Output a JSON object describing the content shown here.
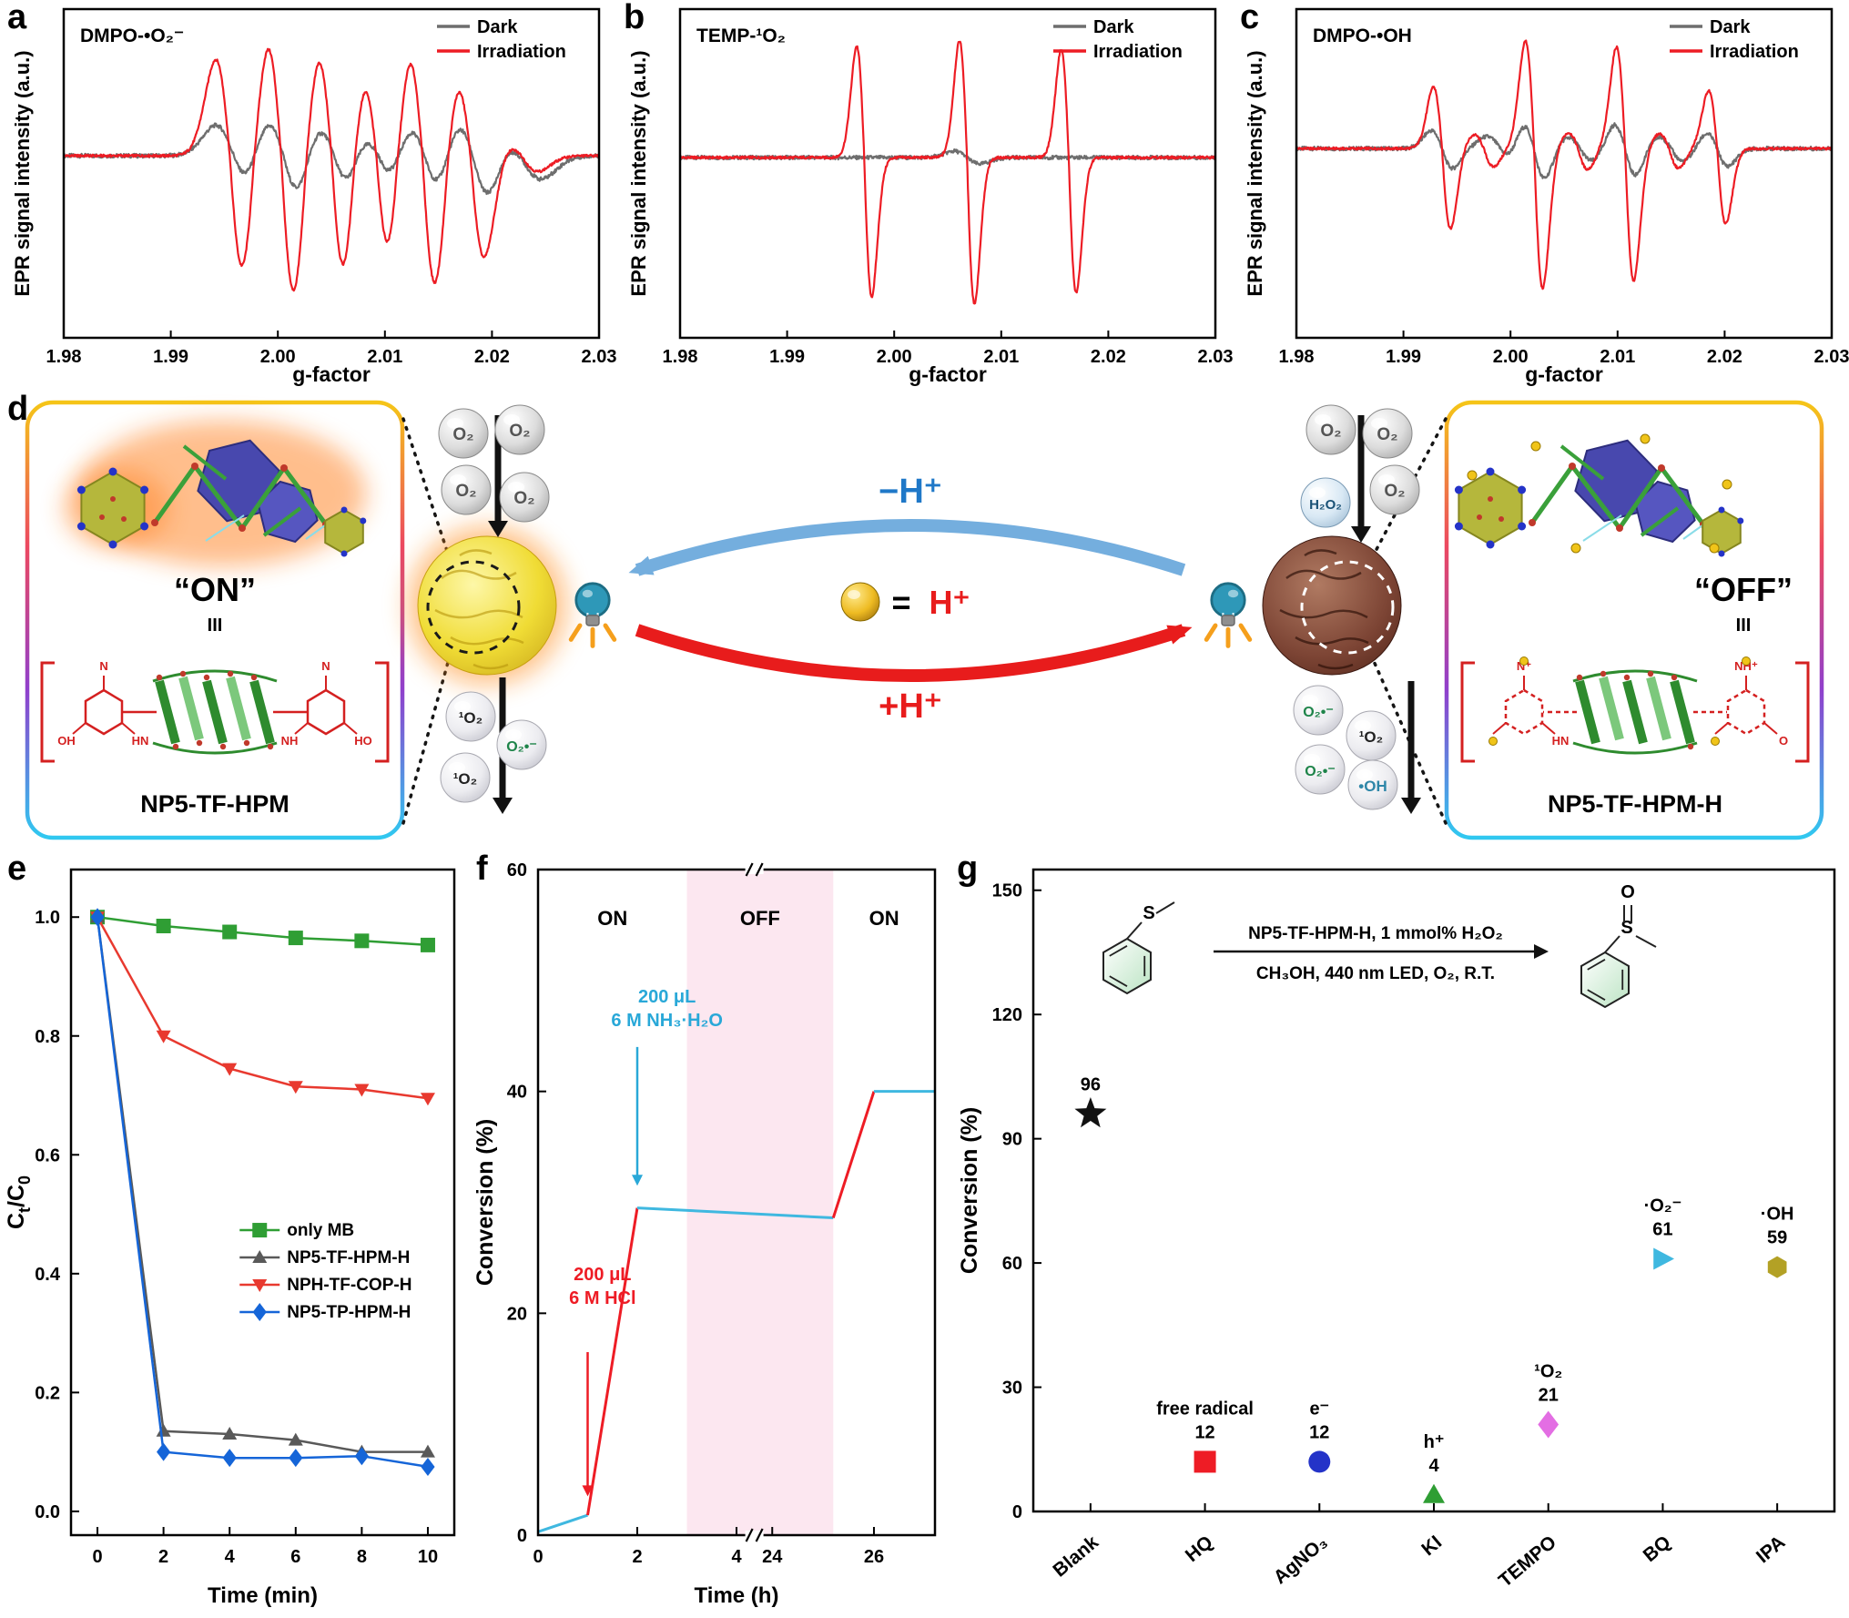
{
  "panels": {
    "a": {
      "label": "a"
    },
    "b": {
      "label": "b"
    },
    "c": {
      "label": "c"
    },
    "d": {
      "label": "d"
    },
    "e": {
      "label": "e"
    },
    "f": {
      "label": "f"
    },
    "g": {
      "label": "g"
    }
  },
  "diagram": {
    "on_title": "“ON”",
    "off_title": "“OFF”",
    "equiv": "III",
    "on_name": "NP5-TF-HPM",
    "off_name": "NP5-TF-HPM-H",
    "o2": "O₂",
    "h2o2": "H₂O₂",
    "singlet_o2": "¹O₂",
    "superoxide": "O₂•⁻",
    "hydroxyl": "•OH",
    "minus_h": "−H⁺",
    "plus_h": "+H⁺",
    "eq": "=",
    "hplus": "H⁺",
    "on_atoms": [
      "N",
      "OH",
      "HN",
      "N",
      "HO",
      "NH"
    ],
    "off_atoms": [
      "N⁺",
      "HN",
      "NH⁺",
      "O"
    ]
  },
  "chart_data": [
    {
      "id": "a",
      "type": "line",
      "tag": "DMPO-•O₂⁻",
      "xlabel": "g-factor",
      "ylabel": "EPR signal intensity (a.u.)",
      "xlim": [
        1.98,
        2.03
      ],
      "ylim": [
        -1.8,
        1.45
      ],
      "xticks": [
        1.98,
        1.99,
        2.0,
        2.01,
        2.02,
        2.03
      ],
      "legend": [
        "Dark",
        "Irradiation"
      ],
      "grid": false,
      "series": [
        {
          "name": "Dark",
          "color": "#6e6e6e",
          "noise": 0.02,
          "negScale": 1.15,
          "peaks": [
            {
              "c": 1.9958,
              "a": 0.3,
              "w": 0.0016
            },
            {
              "c": 2.0005,
              "a": 0.42,
              "w": 0.0016
            },
            {
              "c": 2.0052,
              "a": 0.38,
              "w": 0.0016
            },
            {
              "c": 2.0094,
              "a": 0.32,
              "w": 0.0016
            },
            {
              "c": 2.0137,
              "a": 0.4,
              "w": 0.0016
            },
            {
              "c": 2.0182,
              "a": 0.44,
              "w": 0.0016
            },
            {
              "c": 2.0228,
              "a": 0.2,
              "w": 0.0018
            }
          ]
        },
        {
          "name": "Irradiation",
          "color": "#ed1c24",
          "noise": 0.012,
          "negScale": 1.3,
          "peaks": [
            {
              "c": 1.9955,
              "a": 0.95,
              "w": 0.0013
            },
            {
              "c": 2.0003,
              "a": 1.15,
              "w": 0.0013
            },
            {
              "c": 2.005,
              "a": 1.05,
              "w": 0.0013
            },
            {
              "c": 2.0092,
              "a": 0.88,
              "w": 0.0013
            },
            {
              "c": 2.0135,
              "a": 1.1,
              "w": 0.0013
            },
            {
              "c": 2.018,
              "a": 0.8,
              "w": 0.0013
            },
            {
              "c": 2.0228,
              "a": 0.12,
              "w": 0.0015
            }
          ]
        }
      ]
    },
    {
      "id": "b",
      "type": "line",
      "tag": "TEMP-¹O₂",
      "xlabel": "g-factor",
      "ylabel": "EPR signal intensity (a.u.)",
      "xlim": [
        1.98,
        2.03
      ],
      "ylim": [
        -1.7,
        1.4
      ],
      "xticks": [
        1.98,
        1.99,
        2.0,
        2.01,
        2.02,
        2.03
      ],
      "legend": [
        "Dark",
        "Irradiation"
      ],
      "grid": false,
      "series": [
        {
          "name": "Dark",
          "color": "#6e6e6e",
          "noise": 0.018,
          "negScale": 1,
          "peaks": [
            {
              "c": 2.0068,
              "a": 0.06,
              "w": 0.0012
            }
          ]
        },
        {
          "name": "Irradiation",
          "color": "#ed1c24",
          "noise": 0.012,
          "negScale": 1.25,
          "peaks": [
            {
              "c": 1.9972,
              "a": 1.05,
              "w": 0.0007
            },
            {
              "c": 2.0068,
              "a": 1.1,
              "w": 0.0007
            },
            {
              "c": 2.0163,
              "a": 1.02,
              "w": 0.0007
            }
          ]
        }
      ]
    },
    {
      "id": "c",
      "type": "line",
      "tag": "DMPO-•OH",
      "xlabel": "g-factor",
      "ylabel": "EPR signal intensity (a.u.)",
      "xlim": [
        1.98,
        2.03
      ],
      "ylim": [
        -1.9,
        1.4
      ],
      "xticks": [
        1.98,
        1.99,
        2.0,
        2.01,
        2.02,
        2.03
      ],
      "legend": [
        "Dark",
        "Irradiation"
      ],
      "grid": false,
      "series": [
        {
          "name": "Dark",
          "color": "#6e6e6e",
          "noise": 0.02,
          "negScale": 1.1,
          "peaks": [
            {
              "c": 1.9936,
              "a": 0.18,
              "w": 0.001
            },
            {
              "c": 1.999,
              "a": 0.12,
              "w": 0.0012
            },
            {
              "c": 2.0022,
              "a": 0.28,
              "w": 0.001
            },
            {
              "c": 2.0065,
              "a": 0.12,
              "w": 0.0012
            },
            {
              "c": 2.0107,
              "a": 0.25,
              "w": 0.001
            },
            {
              "c": 2.015,
              "a": 0.12,
              "w": 0.0012
            },
            {
              "c": 2.0193,
              "a": 0.16,
              "w": 0.001
            }
          ]
        },
        {
          "name": "Irradiation",
          "color": "#ed1c24",
          "noise": 0.012,
          "negScale": 1.3,
          "peaks": [
            {
              "c": 1.9936,
              "a": 0.62,
              "w": 0.0008
            },
            {
              "c": 1.9975,
              "a": 0.14,
              "w": 0.0009
            },
            {
              "c": 2.0022,
              "a": 1.08,
              "w": 0.0008
            },
            {
              "c": 2.0063,
              "a": 0.16,
              "w": 0.0009
            },
            {
              "c": 2.0107,
              "a": 1.02,
              "w": 0.0008
            },
            {
              "c": 2.0148,
              "a": 0.15,
              "w": 0.0009
            },
            {
              "c": 2.0193,
              "a": 0.58,
              "w": 0.0008
            }
          ]
        }
      ]
    },
    {
      "id": "e",
      "type": "line",
      "xlabel": "Time (min)",
      "ylabel": "Cₜ/C₀",
      "ylabel_parts": {
        "base1": "C",
        "sub1": "t",
        "base2": "/C",
        "sub2": "0"
      },
      "xlim": [
        -0.8,
        10.8
      ],
      "ylim": [
        -0.04,
        1.08
      ],
      "xticks": [
        0,
        2,
        4,
        6,
        8,
        10
      ],
      "yticks": [
        0,
        0.2,
        0.4,
        0.6,
        0.8,
        1
      ],
      "x": [
        0,
        2,
        4,
        6,
        8,
        10
      ],
      "legend_position": "right-middle",
      "grid": false,
      "series": [
        {
          "name": "only MB",
          "color": "#2f9e34",
          "marker": "square",
          "values": [
            1,
            0.985,
            0.975,
            0.965,
            0.96,
            0.953
          ]
        },
        {
          "name": "NP5-TF-HPM-H",
          "color": "#595959",
          "marker": "triangle-up",
          "values": [
            1,
            0.135,
            0.13,
            0.12,
            0.1,
            0.1
          ]
        },
        {
          "name": "NPH-TF-COP-H",
          "color": "#e8392f",
          "marker": "triangle-down",
          "values": [
            1,
            0.8,
            0.745,
            0.715,
            0.71,
            0.695
          ]
        },
        {
          "name": "NP5-TP-HPM-H",
          "color": "#1565d8",
          "marker": "diamond",
          "values": [
            1,
            0.1,
            0.09,
            0.09,
            0.093,
            0.075
          ]
        }
      ]
    },
    {
      "id": "f",
      "type": "line",
      "xlabel": "Time (h)",
      "ylabel": "Conversion (%)",
      "ylim": [
        0,
        60
      ],
      "yticks": [
        0,
        20,
        40,
        60
      ],
      "xticks": [
        0,
        2,
        4,
        24,
        26
      ],
      "x_break": {
        "left_range": [
          0,
          4
        ],
        "right_range": [
          24,
          27.2
        ],
        "left_frac": 0.5,
        "right_frac_start": 0.59
      },
      "off_region": [
        3,
        25.2
      ],
      "off_region_color": "#fce7f0",
      "zones": [
        {
          "label": "ON",
          "x": 1.5
        },
        {
          "label": "OFF",
          "x": "center"
        },
        {
          "label": "ON",
          "x": 26.2
        }
      ],
      "zone_y": 55,
      "segments": [
        {
          "color": "#3fb8e0",
          "points": [
            [
              0,
              0.3
            ],
            [
              1,
              1.8
            ]
          ]
        },
        {
          "color": "#ee1c25",
          "points": [
            [
              1,
              1.8
            ],
            [
              2,
              29.5
            ]
          ]
        },
        {
          "color": "#3fb8e0",
          "points": [
            [
              2,
              29.5
            ],
            [
              25.2,
              28.6
            ]
          ]
        },
        {
          "color": "#ee1c25",
          "points": [
            [
              25.2,
              28.6
            ],
            [
              26,
              40
            ]
          ]
        },
        {
          "color": "#3fb8e0",
          "points": [
            [
              26,
              40
            ],
            [
              27.2,
              40
            ]
          ]
        }
      ],
      "annotations": [
        {
          "lines": [
            "200 μL",
            "6 M NH₃·H₂O"
          ],
          "color": "#29a8d8",
          "text_x": 2.6,
          "text_y": 48,
          "arrow_x": 2,
          "arrow_y1": 44,
          "arrow_y2": 31.5
        },
        {
          "lines": [
            "200 μL",
            "6 M HCl"
          ],
          "color": "#ee1c25",
          "text_x": 1.3,
          "text_y": 23,
          "arrow_x": 1,
          "arrow_y1": 16.5,
          "arrow_y2": 3.5
        }
      ]
    },
    {
      "id": "g",
      "type": "scatter",
      "ylabel": "Conversion (%)",
      "ylim": [
        0,
        155
      ],
      "yticks": [
        0,
        30,
        60,
        90,
        120,
        150
      ],
      "categories": [
        "Blank",
        "HQ",
        "AgNO₃",
        "KI",
        "TEMPO",
        "BQ",
        "IPA"
      ],
      "points": [
        {
          "category": "Blank",
          "value": 96,
          "marker": "star",
          "color": "#111111",
          "labels": [
            "96"
          ]
        },
        {
          "category": "HQ",
          "value": 12,
          "marker": "square",
          "color": "#ee1c25",
          "labels": [
            "free radical",
            "12"
          ]
        },
        {
          "category": "AgNO₃",
          "value": 12,
          "marker": "circle",
          "color": "#2433c8",
          "labels": [
            "e⁻",
            "12"
          ]
        },
        {
          "category": "KI",
          "value": 4,
          "marker": "triangle-up",
          "color": "#2f9e34",
          "labels": [
            "h⁺",
            "4"
          ]
        },
        {
          "category": "TEMPO",
          "value": 21,
          "marker": "diamond",
          "color": "#e36ee3",
          "labels": [
            "¹O₂",
            "21"
          ]
        },
        {
          "category": "BQ",
          "value": 61,
          "marker": "triangle-right",
          "color": "#3fb8e0",
          "labels": [
            "·O₂⁻",
            "61"
          ]
        },
        {
          "category": "IPA",
          "value": 59,
          "marker": "hexagon",
          "color": "#b3a125",
          "labels": [
            "·OH",
            "59"
          ]
        }
      ],
      "reaction": {
        "above": "NP5-TF-HPM-H, 1 mmol% H₂O₂",
        "below": "CH₃OH, 440 nm LED, O₂, R.T.",
        "s_label": "S",
        "o_label": "O"
      }
    }
  ]
}
